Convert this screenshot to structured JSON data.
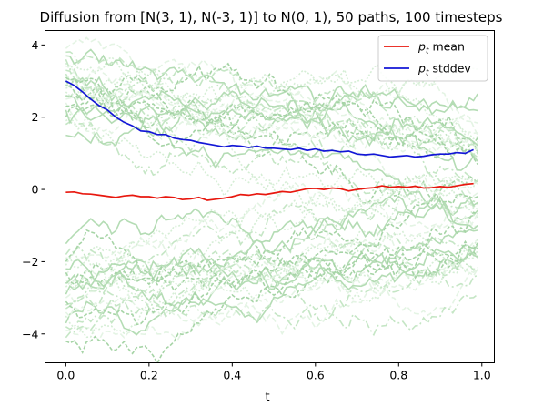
{
  "chart_data": {
    "type": "line",
    "title": "Diffusion from [N(3, 1), N(-3, 1)] to N(0, 1), 50 paths, 100 timesteps",
    "xlabel": "t",
    "ylabel": "",
    "xlim": [
      -0.05,
      1.03
    ],
    "ylim": [
      -4.8,
      4.4
    ],
    "x_ticks": [
      0.0,
      0.2,
      0.4,
      0.6,
      0.8,
      1.0
    ],
    "x_tick_labels": [
      "0.0",
      "0.2",
      "0.4",
      "0.6",
      "0.8",
      "1.0"
    ],
    "y_ticks": [
      -4,
      -2,
      0,
      2,
      4
    ],
    "y_tick_labels": [
      "−4",
      "−2",
      "0",
      "2",
      "4"
    ],
    "grid": false,
    "legend": {
      "placement": "top-right",
      "entries": [
        {
          "label_base": "p",
          "label_sub": "t",
          "label_rest": " mean",
          "color": "#e8170e"
        },
        {
          "label_base": "p",
          "label_sub": "t",
          "label_rest": " stddev",
          "color": "#1216d6"
        }
      ]
    },
    "background_paths": {
      "count": 50,
      "timesteps": 100,
      "color_range": [
        "#e6f5e6",
        "#a8d5a8"
      ],
      "start_values": [
        3.9,
        3.5,
        3.2,
        2.9,
        2.6,
        2.4,
        2.1,
        1.8,
        3.7,
        2.3,
        3.0,
        2.7,
        3.3,
        1.5,
        2.0,
        3.4,
        2.8,
        3.6,
        2.2,
        3.1,
        2.5,
        1.9,
        3.8,
        2.6,
        3.0,
        -3.9,
        -3.5,
        -3.2,
        -2.9,
        -2.6,
        -2.4,
        -2.1,
        -1.8,
        -3.7,
        -2.3,
        -3.0,
        -2.7,
        -3.3,
        -1.5,
        -2.0,
        -3.4,
        -2.8,
        -4.1,
        -2.2,
        -3.1,
        -2.5,
        -1.9,
        -3.8,
        -2.6,
        -4.2
      ]
    },
    "series": [
      {
        "name": "p_t mean",
        "color": "#e8170e",
        "x": [
          0.0,
          0.02,
          0.04,
          0.06,
          0.08,
          0.1,
          0.12,
          0.14,
          0.16,
          0.18,
          0.2,
          0.22,
          0.24,
          0.26,
          0.28,
          0.3,
          0.32,
          0.34,
          0.36,
          0.38,
          0.4,
          0.42,
          0.44,
          0.46,
          0.48,
          0.5,
          0.52,
          0.54,
          0.56,
          0.58,
          0.6,
          0.62,
          0.64,
          0.66,
          0.68,
          0.7,
          0.72,
          0.74,
          0.76,
          0.78,
          0.8,
          0.82,
          0.84,
          0.86,
          0.88,
          0.9,
          0.92,
          0.94,
          0.96,
          0.98
        ],
        "values": [
          -0.08,
          -0.07,
          -0.12,
          -0.13,
          -0.16,
          -0.19,
          -0.22,
          -0.18,
          -0.16,
          -0.2,
          -0.2,
          -0.24,
          -0.2,
          -0.22,
          -0.28,
          -0.26,
          -0.22,
          -0.3,
          -0.27,
          -0.24,
          -0.2,
          -0.14,
          -0.16,
          -0.12,
          -0.14,
          -0.1,
          -0.06,
          -0.08,
          -0.03,
          0.02,
          0.03,
          0.0,
          0.04,
          0.02,
          -0.04,
          0.0,
          0.03,
          0.05,
          0.1,
          0.06,
          0.08,
          0.06,
          0.09,
          0.04,
          0.05,
          0.08,
          0.06,
          0.1,
          0.14,
          0.16
        ]
      },
      {
        "name": "p_t stddev",
        "color": "#1216d6",
        "x": [
          0.0,
          0.02,
          0.04,
          0.06,
          0.08,
          0.1,
          0.12,
          0.14,
          0.16,
          0.18,
          0.2,
          0.22,
          0.24,
          0.26,
          0.28,
          0.3,
          0.32,
          0.34,
          0.36,
          0.38,
          0.4,
          0.42,
          0.44,
          0.46,
          0.48,
          0.5,
          0.52,
          0.54,
          0.56,
          0.58,
          0.6,
          0.62,
          0.64,
          0.66,
          0.68,
          0.7,
          0.72,
          0.74,
          0.76,
          0.78,
          0.8,
          0.82,
          0.84,
          0.86,
          0.88,
          0.9,
          0.92,
          0.94,
          0.96,
          0.98
        ],
        "values": [
          3.0,
          2.88,
          2.7,
          2.5,
          2.32,
          2.2,
          2.0,
          1.86,
          1.76,
          1.62,
          1.6,
          1.52,
          1.52,
          1.42,
          1.38,
          1.36,
          1.3,
          1.26,
          1.22,
          1.18,
          1.22,
          1.2,
          1.16,
          1.2,
          1.14,
          1.14,
          1.12,
          1.1,
          1.14,
          1.08,
          1.12,
          1.06,
          1.08,
          1.04,
          1.06,
          0.98,
          0.96,
          0.98,
          0.94,
          0.9,
          0.92,
          0.94,
          0.9,
          0.92,
          0.96,
          0.98,
          0.98,
          1.02,
          1.0,
          1.1
        ]
      }
    ]
  }
}
